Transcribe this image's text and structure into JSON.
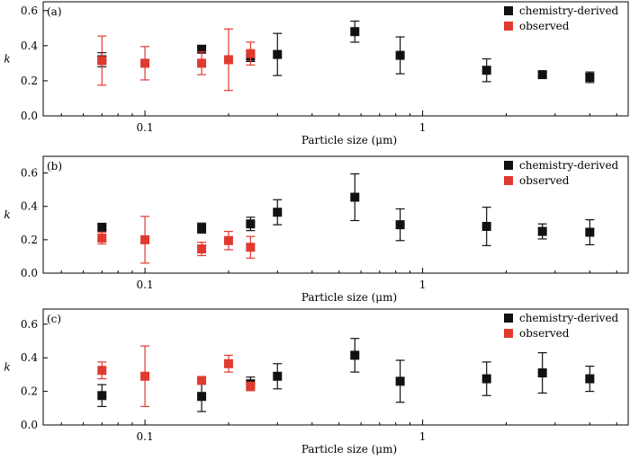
{
  "chart_data": [
    {
      "type": "scatter",
      "panel_label": "(a)",
      "xlabel": "Particle size (μm)",
      "ylabel": "k",
      "xscale": "log",
      "xlim": [
        0.043,
        5.5
      ],
      "ylim": [
        0.0,
        0.65
      ],
      "xticks": [
        0.1,
        1
      ],
      "xtick_labels": [
        "0.1",
        "1"
      ],
      "yticks": [
        0.0,
        0.2,
        0.4,
        0.6
      ],
      "ytick_labels": [
        "0.0",
        "0.2",
        "0.4",
        "0.6"
      ],
      "legend_position": "top-right",
      "series": [
        {
          "name": "chemistry-derived",
          "color": "#111111",
          "points": [
            {
              "x": 0.07,
              "y": 0.32,
              "err": 0.04
            },
            {
              "x": 0.16,
              "y": 0.38,
              "err": 0.02
            },
            {
              "x": 0.24,
              "y": 0.34,
              "err": 0.03
            },
            {
              "x": 0.3,
              "y": 0.35,
              "err": 0.12
            },
            {
              "x": 0.57,
              "y": 0.48,
              "err": 0.06
            },
            {
              "x": 0.83,
              "y": 0.345,
              "err": 0.105
            },
            {
              "x": 1.7,
              "y": 0.26,
              "err": 0.065
            },
            {
              "x": 2.7,
              "y": 0.235,
              "err": 0.015
            },
            {
              "x": 4.0,
              "y": 0.22,
              "err": 0.03
            }
          ]
        },
        {
          "name": "observed",
          "color": "#e03a2f",
          "points": [
            {
              "x": 0.07,
              "y": 0.315,
              "err": 0.14
            },
            {
              "x": 0.1,
              "y": 0.3,
              "err": 0.095
            },
            {
              "x": 0.16,
              "y": 0.3,
              "err": 0.065
            },
            {
              "x": 0.2,
              "y": 0.32,
              "err": 0.175
            },
            {
              "x": 0.24,
              "y": 0.355,
              "err": 0.065
            }
          ]
        }
      ]
    },
    {
      "type": "scatter",
      "panel_label": "(b)",
      "xlabel": "Particle size (μm)",
      "ylabel": "k",
      "xscale": "log",
      "xlim": [
        0.043,
        5.5
      ],
      "ylim": [
        0.0,
        0.7
      ],
      "xticks": [
        0.1,
        1
      ],
      "xtick_labels": [
        "0.1",
        "1"
      ],
      "yticks": [
        0.0,
        0.2,
        0.4,
        0.6
      ],
      "ytick_labels": [
        "0.0",
        "0.2",
        "0.4",
        "0.6"
      ],
      "legend_position": "top-right",
      "series": [
        {
          "name": "chemistry-derived",
          "color": "#111111",
          "points": [
            {
              "x": 0.07,
              "y": 0.275,
              "err": 0.015
            },
            {
              "x": 0.16,
              "y": 0.27,
              "err": 0.03
            },
            {
              "x": 0.24,
              "y": 0.295,
              "err": 0.04
            },
            {
              "x": 0.3,
              "y": 0.365,
              "err": 0.075
            },
            {
              "x": 0.57,
              "y": 0.455,
              "err": 0.14
            },
            {
              "x": 0.83,
              "y": 0.29,
              "err": 0.095
            },
            {
              "x": 1.7,
              "y": 0.28,
              "err": 0.115
            },
            {
              "x": 2.7,
              "y": 0.25,
              "err": 0.045
            },
            {
              "x": 4.0,
              "y": 0.245,
              "err": 0.075
            }
          ]
        },
        {
          "name": "observed",
          "color": "#e03a2f",
          "points": [
            {
              "x": 0.07,
              "y": 0.21,
              "err": 0.035
            },
            {
              "x": 0.1,
              "y": 0.2,
              "err": 0.14
            },
            {
              "x": 0.16,
              "y": 0.145,
              "err": 0.04
            },
            {
              "x": 0.2,
              "y": 0.195,
              "err": 0.055
            },
            {
              "x": 0.24,
              "y": 0.155,
              "err": 0.065
            }
          ]
        }
      ]
    },
    {
      "type": "scatter",
      "panel_label": "(c)",
      "xlabel": "Particle size (μm)",
      "ylabel": "k",
      "xscale": "log",
      "xlim": [
        0.043,
        5.5
      ],
      "ylim": [
        0.0,
        0.69
      ],
      "xticks": [
        0.1,
        1
      ],
      "xtick_labels": [
        "0.1",
        "1"
      ],
      "yticks": [
        0.0,
        0.2,
        0.4,
        0.6
      ],
      "ytick_labels": [
        "0.0",
        "0.2",
        "0.4",
        "0.6"
      ],
      "legend_position": "top-right",
      "series": [
        {
          "name": "chemistry-derived",
          "color": "#111111",
          "points": [
            {
              "x": 0.07,
              "y": 0.175,
              "err": 0.065
            },
            {
              "x": 0.16,
              "y": 0.17,
              "err": 0.09
            },
            {
              "x": 0.24,
              "y": 0.245,
              "err": 0.04
            },
            {
              "x": 0.3,
              "y": 0.29,
              "err": 0.075
            },
            {
              "x": 0.57,
              "y": 0.415,
              "err": 0.1
            },
            {
              "x": 0.83,
              "y": 0.26,
              "err": 0.125
            },
            {
              "x": 1.7,
              "y": 0.275,
              "err": 0.1
            },
            {
              "x": 2.7,
              "y": 0.31,
              "err": 0.12
            },
            {
              "x": 4.0,
              "y": 0.275,
              "err": 0.075
            }
          ]
        },
        {
          "name": "observed",
          "color": "#e03a2f",
          "points": [
            {
              "x": 0.07,
              "y": 0.325,
              "err": 0.05
            },
            {
              "x": 0.1,
              "y": 0.29,
              "err": 0.18
            },
            {
              "x": 0.16,
              "y": 0.265,
              "err": 0.015
            },
            {
              "x": 0.2,
              "y": 0.365,
              "err": 0.05
            },
            {
              "x": 0.24,
              "y": 0.23,
              "err": 0.025
            }
          ]
        }
      ]
    }
  ]
}
